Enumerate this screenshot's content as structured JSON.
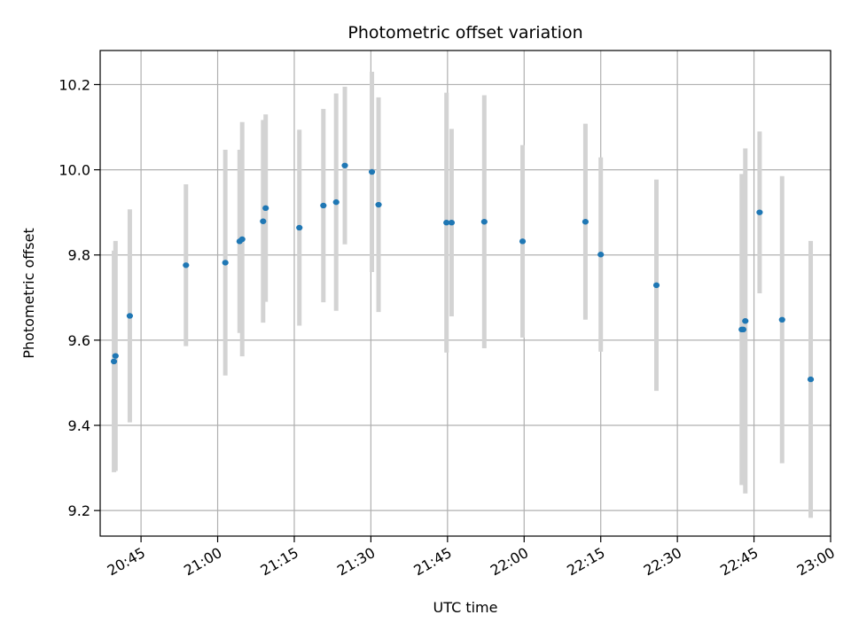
{
  "chart_data": {
    "type": "scatter",
    "title": "Photometric offset variation",
    "xlabel": "UTC time",
    "ylabel": "Photometric offset",
    "x_tick_labels": [
      "20:45",
      "21:00",
      "21:15",
      "21:30",
      "21:45",
      "22:00",
      "22:15",
      "22:30",
      "22:45",
      "23:00"
    ],
    "x_ticks_minutes": [
      1245,
      1260,
      1275,
      1290,
      1305,
      1320,
      1335,
      1350,
      1365,
      1380
    ],
    "y_tick_labels": [
      "9.2",
      "9.4",
      "9.6",
      "9.8",
      "10.0",
      "10.2"
    ],
    "y_ticks": [
      9.2,
      9.4,
      9.6,
      9.8,
      10.0,
      10.2
    ],
    "xlim": [
      "20:37",
      "23:00"
    ],
    "ylim": [
      9.14,
      10.28
    ],
    "grid": true,
    "colors": {
      "point": "#1f77b4",
      "errorbar": "#d3d3d3",
      "grid": "#b0b0b0"
    },
    "points": [
      {
        "x": "20:39.7",
        "y": 9.55,
        "err": 0.26
      },
      {
        "x": "20:40.0",
        "y": 9.563,
        "err": 0.27
      },
      {
        "x": "20:42.8",
        "y": 9.657,
        "err": 0.25
      },
      {
        "x": "20:53.8",
        "y": 9.776,
        "err": 0.19
      },
      {
        "x": "21:01.5",
        "y": 9.782,
        "err": 0.265
      },
      {
        "x": "21:04.3",
        "y": 9.832,
        "err": 0.215
      },
      {
        "x": "21:04.8",
        "y": 9.837,
        "err": 0.275
      },
      {
        "x": "21:08.9",
        "y": 9.879,
        "err": 0.238
      },
      {
        "x": "21:09.4",
        "y": 9.91,
        "err": 0.22
      },
      {
        "x": "21:16.0",
        "y": 9.864,
        "err": 0.23
      },
      {
        "x": "21:20.7",
        "y": 9.916,
        "err": 0.227
      },
      {
        "x": "21:23.2",
        "y": 9.924,
        "err": 0.255
      },
      {
        "x": "21:24.9",
        "y": 10.01,
        "err": 0.185
      },
      {
        "x": "21:30.2",
        "y": 9.995,
        "err": 0.235
      },
      {
        "x": "21:31.5",
        "y": 9.918,
        "err": 0.252
      },
      {
        "x": "21:44.8",
        "y": 9.876,
        "err": 0.305
      },
      {
        "x": "21:45.8",
        "y": 9.876,
        "err": 0.22
      },
      {
        "x": "21:52.2",
        "y": 9.878,
        "err": 0.297
      },
      {
        "x": "21:59.7",
        "y": 9.832,
        "err": 0.226
      },
      {
        "x": "22:12.0",
        "y": 9.878,
        "err": 0.23
      },
      {
        "x": "22:15.0",
        "y": 9.801,
        "err": 0.228
      },
      {
        "x": "22:25.9",
        "y": 9.729,
        "err": 0.248
      },
      {
        "x": "22:42.6",
        "y": 9.625,
        "err": 0.365
      },
      {
        "x": "22:42.9",
        "y": 9.625,
        "err": 0.36
      },
      {
        "x": "22:43.3",
        "y": 9.645,
        "err": 0.405
      },
      {
        "x": "22:46.1",
        "y": 9.9,
        "err": 0.19
      },
      {
        "x": "22:50.5",
        "y": 9.648,
        "err": 0.337
      },
      {
        "x": "22:56.1",
        "y": 9.508,
        "err": 0.325
      }
    ]
  }
}
